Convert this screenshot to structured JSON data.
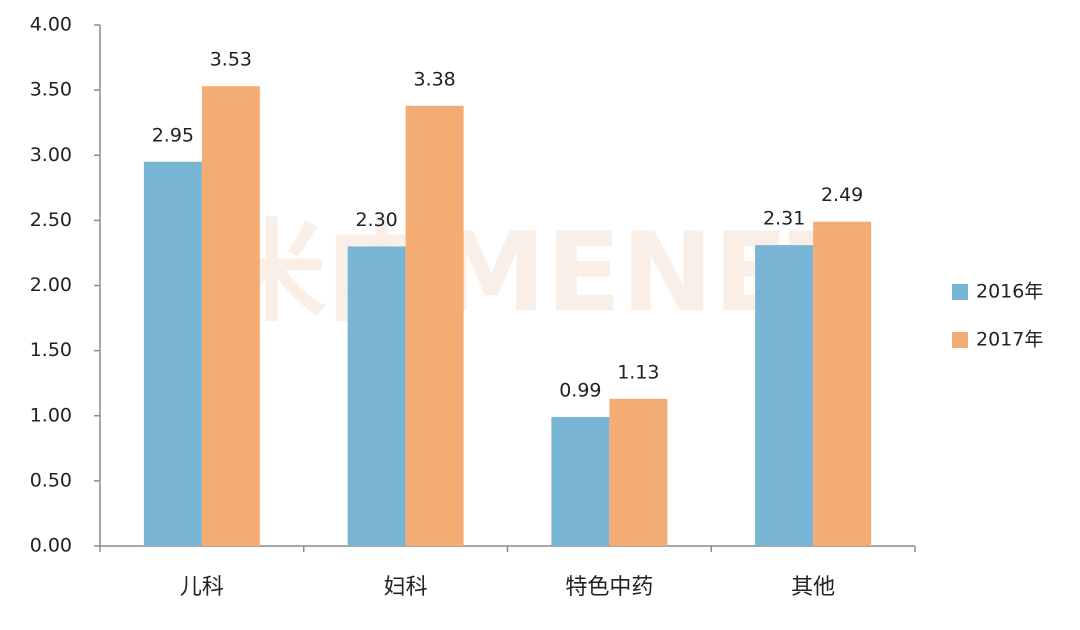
{
  "chart_data": {
    "type": "bar",
    "watermark": "米内MENET",
    "categories": [
      "儿科",
      "妇科",
      "特色中药",
      "其他"
    ],
    "series": [
      {
        "name": "2016年",
        "color": "#78b4d4",
        "values": [
          2.95,
          2.3,
          0.99,
          2.31
        ],
        "value_labels": [
          "2.95",
          "2.30",
          "0.99",
          "2.31"
        ]
      },
      {
        "name": "2017年",
        "color": "#f3ad74",
        "values": [
          3.53,
          3.38,
          1.13,
          2.49
        ],
        "value_labels": [
          "3.53",
          "3.38",
          "1.13",
          "2.49"
        ]
      }
    ],
    "ylim": [
      0,
      4
    ],
    "yticks": [
      {
        "value": 0,
        "label": "0.00"
      },
      {
        "value": 0.5,
        "label": "0.50"
      },
      {
        "value": 1,
        "label": "1.00"
      },
      {
        "value": 1.5,
        "label": "1.50"
      },
      {
        "value": 2,
        "label": "2.00"
      },
      {
        "value": 2.5,
        "label": "2.50"
      },
      {
        "value": 3,
        "label": "3.00"
      },
      {
        "value": 3.5,
        "label": "3.50"
      },
      {
        "value": 4,
        "label": "4.00"
      }
    ],
    "grid": false,
    "legend": "right"
  }
}
